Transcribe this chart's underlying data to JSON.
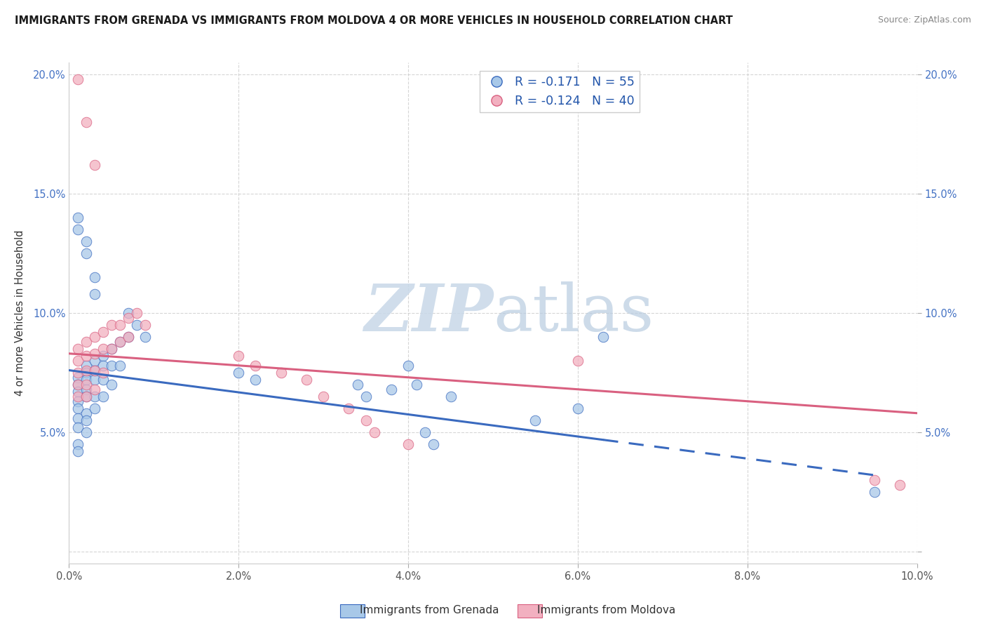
{
  "title": "IMMIGRANTS FROM GRENADA VS IMMIGRANTS FROM MOLDOVA 4 OR MORE VEHICLES IN HOUSEHOLD CORRELATION CHART",
  "source": "Source: ZipAtlas.com",
  "ylabel": "4 or more Vehicles in Household",
  "R1": "-0.171",
  "N1": "55",
  "R2": "-0.124",
  "N2": "40",
  "color1": "#a8c8e8",
  "color2": "#f2b0c0",
  "line_color1": "#3a6abf",
  "line_color2": "#d96080",
  "legend_label1": "Immigrants from Grenada",
  "legend_label2": "Immigrants from Moldova",
  "watermark_zip": "ZIP",
  "watermark_atlas": "atlas",
  "xlim": [
    0.0,
    0.1
  ],
  "ylim": [
    -0.005,
    0.205
  ],
  "xticks": [
    0.0,
    0.02,
    0.04,
    0.06,
    0.08,
    0.1
  ],
  "yticks": [
    0.0,
    0.05,
    0.1,
    0.15,
    0.2
  ],
  "xticklabels": [
    "0.0%",
    "2.0%",
    "4.0%",
    "6.0%",
    "8.0%",
    "10.0%"
  ],
  "yticklabels": [
    "",
    "5.0%",
    "10.0%",
    "15.0%",
    "20.0%"
  ],
  "grenada_x": [
    0.001,
    0.001,
    0.001,
    0.001,
    0.001,
    0.001,
    0.001,
    0.001,
    0.001,
    0.002,
    0.002,
    0.002,
    0.002,
    0.002,
    0.002,
    0.002,
    0.002,
    0.003,
    0.003,
    0.003,
    0.003,
    0.003,
    0.004,
    0.004,
    0.004,
    0.004,
    0.005,
    0.005,
    0.005,
    0.006,
    0.006,
    0.007,
    0.007,
    0.008,
    0.009,
    0.02,
    0.022,
    0.034,
    0.035,
    0.038,
    0.04,
    0.041,
    0.045,
    0.055,
    0.06,
    0.063,
    0.095,
    0.042,
    0.043,
    0.001,
    0.001,
    0.002,
    0.002,
    0.003,
    0.003
  ],
  "grenada_y": [
    0.073,
    0.07,
    0.067,
    0.063,
    0.06,
    0.056,
    0.052,
    0.045,
    0.042,
    0.078,
    0.075,
    0.072,
    0.068,
    0.065,
    0.058,
    0.055,
    0.05,
    0.08,
    0.076,
    0.072,
    0.065,
    0.06,
    0.082,
    0.078,
    0.072,
    0.065,
    0.085,
    0.078,
    0.07,
    0.088,
    0.078,
    0.1,
    0.09,
    0.095,
    0.09,
    0.075,
    0.072,
    0.07,
    0.065,
    0.068,
    0.078,
    0.07,
    0.065,
    0.055,
    0.06,
    0.09,
    0.025,
    0.05,
    0.045,
    0.14,
    0.135,
    0.13,
    0.125,
    0.115,
    0.108
  ],
  "moldova_x": [
    0.001,
    0.001,
    0.001,
    0.001,
    0.001,
    0.002,
    0.002,
    0.002,
    0.002,
    0.002,
    0.003,
    0.003,
    0.003,
    0.003,
    0.004,
    0.004,
    0.004,
    0.005,
    0.005,
    0.006,
    0.006,
    0.007,
    0.007,
    0.008,
    0.009,
    0.02,
    0.022,
    0.025,
    0.028,
    0.03,
    0.033,
    0.035,
    0.036,
    0.04,
    0.06,
    0.095,
    0.098,
    0.001,
    0.002,
    0.003
  ],
  "moldova_y": [
    0.085,
    0.08,
    0.075,
    0.07,
    0.065,
    0.088,
    0.082,
    0.076,
    0.07,
    0.065,
    0.09,
    0.083,
    0.076,
    0.068,
    0.092,
    0.085,
    0.075,
    0.095,
    0.085,
    0.095,
    0.088,
    0.098,
    0.09,
    0.1,
    0.095,
    0.082,
    0.078,
    0.075,
    0.072,
    0.065,
    0.06,
    0.055,
    0.05,
    0.045,
    0.08,
    0.03,
    0.028,
    0.198,
    0.18,
    0.162
  ],
  "line1_x": [
    0.0,
    0.095
  ],
  "line1_y_start": 0.076,
  "line1_y_end": 0.032,
  "line1_solid_end": 0.063,
  "line2_x": [
    0.0,
    0.1
  ],
  "line2_y_start": 0.083,
  "line2_y_end": 0.058
}
